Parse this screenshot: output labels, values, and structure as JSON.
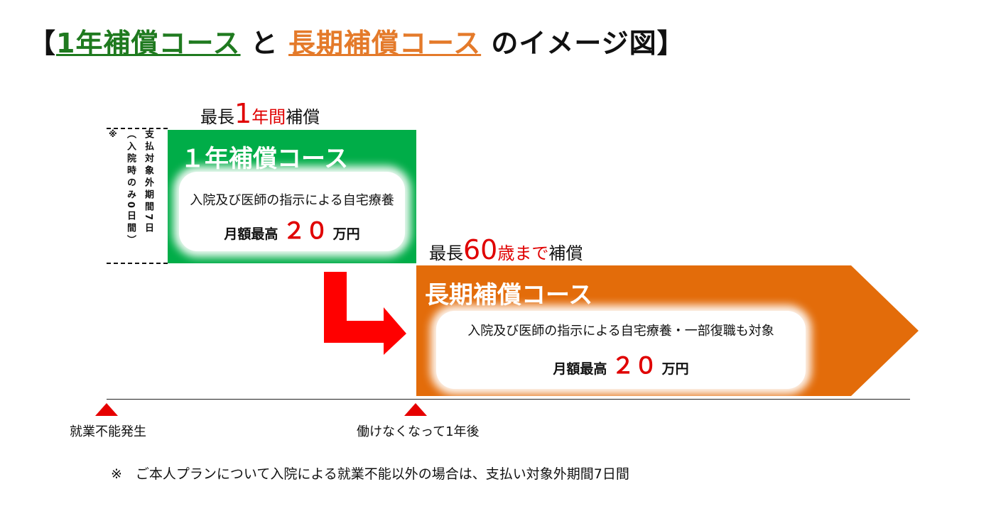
{
  "title": {
    "open": "【",
    "part1": "1年補償コース",
    "mid": " と ",
    "part2": "長期補償コース",
    "end": " のイメージ図",
    "close": "】"
  },
  "one_year": {
    "label_pre": "最長",
    "label_num": "1",
    "label_red": "年間",
    "label_post": "補償",
    "course_name": "１年補償コース",
    "desc": "入院及び医師の指示による自宅療養",
    "amount_pre": "月額最高",
    "amount_num": "２０",
    "amount_post": "万円",
    "color": "#00ad48"
  },
  "waiting": {
    "mark": "※",
    "paren_text": "（入院時のみ0日間）",
    "main_text": "支払対象外期間7日"
  },
  "long_term": {
    "label_pre": "最長",
    "label_num": "60",
    "label_red": "歳まで",
    "label_post": "補償",
    "course_name": "長期補償コース",
    "desc": "入院及び医師の指示による自宅療養・一部復職も対象",
    "amount_pre": "月額最高",
    "amount_num": "２０",
    "amount_post": "万円",
    "color": "#e36c0a"
  },
  "arrow": {
    "color": "#ff0000"
  },
  "timeline": {
    "start_label": "就業不能発生",
    "mid_label": "働けなくなって1年後",
    "marker_color": "#e60000"
  },
  "footnote": "※　ご本人プランについて入院による就業不能以外の場合は、支払い対象外期間7日間"
}
